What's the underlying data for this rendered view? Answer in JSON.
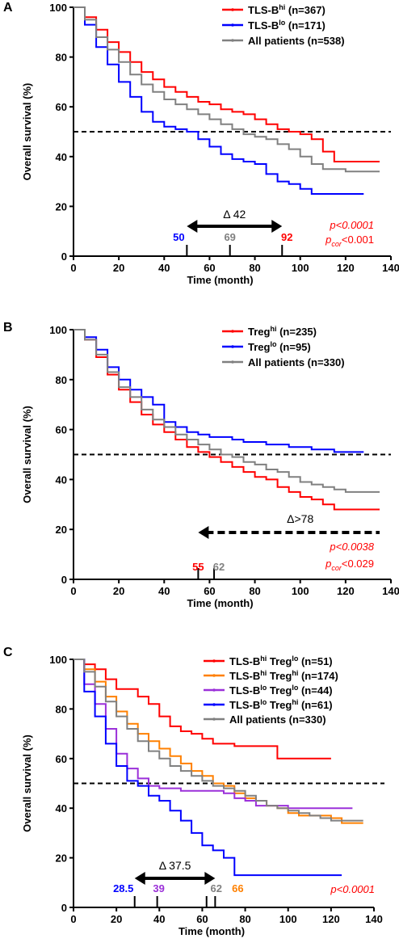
{
  "chart_data": [
    {
      "panel": "A",
      "type": "line",
      "xlabel": "Time (month)",
      "ylabel": "Overall survival (%)",
      "xlim": [
        0,
        140
      ],
      "ylim": [
        0,
        100
      ],
      "xticks": [
        "0",
        "20",
        "40",
        "60",
        "80",
        "100",
        "120",
        "140"
      ],
      "yticks": [
        "0",
        "20",
        "40",
        "60",
        "80",
        "100"
      ],
      "reference_line": 50,
      "legend": [
        "TLS-B^hi (n=367)",
        "TLS-B^lo (n=171)",
        "All patients (n=538)"
      ],
      "series": [
        {
          "name": "TLS-B^hi (n=367)",
          "color": "#ff0000",
          "x": [
            0,
            5,
            10,
            15,
            20,
            25,
            30,
            35,
            40,
            45,
            50,
            55,
            60,
            65,
            70,
            75,
            80,
            85,
            90,
            95,
            100,
            105,
            110,
            115,
            120,
            125,
            135
          ],
          "y": [
            100,
            96,
            91,
            86,
            82,
            78,
            74,
            71,
            68,
            66,
            64,
            62,
            61,
            59,
            58,
            57,
            55,
            53,
            51,
            50,
            49,
            47,
            42,
            38,
            38,
            38,
            38
          ]
        },
        {
          "name": "TLS-B^lo (n=171)",
          "color": "#0000ff",
          "x": [
            0,
            5,
            10,
            15,
            20,
            25,
            30,
            35,
            40,
            45,
            50,
            55,
            60,
            65,
            70,
            75,
            80,
            85,
            90,
            95,
            100,
            105,
            110,
            115,
            120,
            128
          ],
          "y": [
            100,
            93,
            84,
            77,
            70,
            64,
            58,
            54,
            52,
            51,
            50,
            47,
            44,
            41,
            39,
            38,
            37,
            33,
            30,
            29,
            27,
            25,
            25,
            25,
            25,
            25
          ]
        },
        {
          "name": "All patients (n=538)",
          "color": "#808080",
          "x": [
            0,
            5,
            10,
            15,
            20,
            25,
            30,
            35,
            40,
            45,
            50,
            55,
            60,
            65,
            70,
            75,
            80,
            85,
            90,
            95,
            100,
            105,
            110,
            115,
            120,
            125,
            135
          ],
          "y": [
            100,
            95,
            88,
            83,
            78,
            73,
            69,
            66,
            63,
            61,
            59,
            57,
            55,
            53,
            51,
            49,
            48,
            47,
            45,
            43,
            40,
            37,
            35,
            35,
            34,
            34,
            34
          ]
        }
      ],
      "annotations": {
        "delta": "Δ 42",
        "arrow": {
          "from": 50,
          "to": 92
        },
        "medians": [
          {
            "value": "50",
            "color": "#0000ff",
            "x": 50
          },
          {
            "value": "69",
            "color": "#808080",
            "x": 69
          },
          {
            "value": "92",
            "color": "#ff0000",
            "x": 92
          }
        ],
        "p_value": "p<0.0001",
        "p_cor": {
          "p": "p",
          "sub": "cor",
          "rest": "<0.001"
        }
      }
    },
    {
      "panel": "B",
      "type": "line",
      "xlabel": "Time (month)",
      "ylabel": "Overall survival (%)",
      "xlim": [
        0,
        140
      ],
      "ylim": [
        0,
        100
      ],
      "xticks": [
        "0",
        "20",
        "40",
        "60",
        "80",
        "100",
        "120",
        "140"
      ],
      "yticks": [
        "0",
        "20",
        "40",
        "60",
        "80",
        "100"
      ],
      "reference_line": 50,
      "legend": [
        "Treg^hi (n=235)",
        "Treg^lo (n=95)",
        "All patients (n=330)"
      ],
      "series": [
        {
          "name": "Treg^hi (n=235)",
          "color": "#ff0000",
          "x": [
            0,
            5,
            10,
            15,
            20,
            25,
            30,
            35,
            40,
            45,
            50,
            55,
            60,
            65,
            70,
            75,
            80,
            85,
            90,
            95,
            100,
            105,
            110,
            115,
            120,
            125,
            135
          ],
          "y": [
            100,
            96,
            89,
            82,
            76,
            71,
            66,
            62,
            59,
            56,
            53,
            51,
            49,
            47,
            45,
            43,
            41,
            40,
            37,
            35,
            33,
            32,
            30,
            28,
            28,
            28,
            28
          ]
        },
        {
          "name": "Treg^lo (n=95)",
          "color": "#0000ff",
          "x": [
            0,
            5,
            10,
            15,
            20,
            25,
            30,
            35,
            40,
            45,
            50,
            55,
            60,
            65,
            70,
            75,
            80,
            85,
            90,
            95,
            100,
            105,
            110,
            115,
            120,
            128
          ],
          "y": [
            100,
            97,
            92,
            85,
            80,
            76,
            73,
            70,
            63,
            61,
            59,
            58,
            57,
            57,
            56,
            55,
            55,
            54,
            54,
            53,
            53,
            52,
            52,
            51,
            51,
            51
          ]
        },
        {
          "name": "All patients (n=330)",
          "color": "#808080",
          "x": [
            0,
            5,
            10,
            15,
            20,
            25,
            30,
            35,
            40,
            45,
            50,
            55,
            60,
            65,
            70,
            75,
            80,
            85,
            90,
            95,
            100,
            105,
            110,
            115,
            120,
            125,
            135
          ],
          "y": [
            100,
            96,
            90,
            83,
            77,
            73,
            68,
            64,
            61,
            58,
            56,
            54,
            52,
            50,
            49,
            47,
            46,
            44,
            43,
            41,
            39,
            38,
            37,
            36,
            35,
            35,
            35
          ]
        }
      ],
      "annotations": {
        "delta": "Δ>78",
        "arrow": {
          "from": 135,
          "to": 55
        },
        "medians": [
          {
            "value": "55",
            "color": "#ff0000",
            "x": 55
          },
          {
            "value": "62",
            "color": "#808080",
            "x": 62
          }
        ],
        "p_value": "p<0.0038",
        "p_cor": {
          "p": "p",
          "sub": "cor",
          "rest": "<0.029"
        }
      }
    },
    {
      "panel": "C",
      "type": "line",
      "xlabel": "Time (month)",
      "ylabel": "Overall survival (%)",
      "xlim": [
        0,
        140
      ],
      "ylim": [
        0,
        100
      ],
      "xticks": [
        "0",
        "20",
        "40",
        "60",
        "80",
        "100",
        "120",
        "140"
      ],
      "yticks": [
        "0",
        "20",
        "40",
        "60",
        "80",
        "100"
      ],
      "reference_line": 50,
      "legend": [
        "TLS-B^hi Treg^lo (n=51)",
        "TLS-B^hi Treg^hi (n=174)",
        "TLS-B^lo Treg^lo (n=44)",
        "TLS-B^lo Treg^hi (n=61)",
        "All patients (n=330)"
      ],
      "series": [
        {
          "name": "TLS-B^hi Treg^lo (n=51)",
          "color": "#ff0000",
          "x": [
            0,
            5,
            10,
            15,
            20,
            25,
            30,
            35,
            40,
            45,
            50,
            55,
            60,
            65,
            70,
            75,
            80,
            85,
            90,
            95,
            100,
            110,
            120
          ],
          "y": [
            100,
            98,
            96,
            92,
            88,
            88,
            85,
            82,
            77,
            73,
            71,
            70,
            68,
            66,
            66,
            65,
            65,
            65,
            65,
            60,
            60,
            60,
            60
          ]
        },
        {
          "name": "TLS-B^hi Treg^hi (n=174)",
          "color": "#ff8000",
          "x": [
            0,
            5,
            10,
            15,
            20,
            25,
            30,
            35,
            40,
            45,
            50,
            55,
            60,
            65,
            70,
            75,
            80,
            85,
            90,
            95,
            100,
            105,
            110,
            115,
            120,
            125,
            135
          ],
          "y": [
            100,
            96,
            91,
            85,
            79,
            74,
            70,
            67,
            64,
            61,
            58,
            55,
            53,
            50,
            49,
            46,
            44,
            43,
            41,
            40,
            38,
            37,
            37,
            37,
            36,
            34,
            34
          ]
        },
        {
          "name": "TLS-B^lo Treg^lo (n=44)",
          "color": "#9b30d9",
          "x": [
            0,
            5,
            10,
            15,
            20,
            25,
            30,
            35,
            40,
            45,
            50,
            55,
            60,
            65,
            70,
            75,
            80,
            85,
            90,
            95,
            100,
            110,
            120,
            130
          ],
          "y": [
            100,
            90,
            82,
            72,
            62,
            56,
            52,
            49,
            48,
            48,
            47,
            47,
            47,
            47,
            46,
            44,
            43,
            41,
            41,
            41,
            40,
            40,
            40,
            40
          ]
        },
        {
          "name": "TLS-B^lo Treg^hi (n=61)",
          "color": "#0000ff",
          "x": [
            0,
            5,
            10,
            15,
            20,
            25,
            30,
            35,
            40,
            45,
            50,
            55,
            60,
            65,
            70,
            75,
            80,
            85,
            90,
            100,
            110,
            125
          ],
          "y": [
            100,
            87,
            77,
            66,
            57,
            51,
            49,
            45,
            43,
            39,
            35,
            30,
            25,
            23,
            20,
            13,
            13,
            13,
            13,
            13,
            13,
            13
          ]
        },
        {
          "name": "All patients (n=330)",
          "color": "#808080",
          "x": [
            0,
            5,
            10,
            15,
            20,
            25,
            30,
            35,
            40,
            45,
            50,
            55,
            60,
            65,
            70,
            75,
            80,
            85,
            90,
            95,
            100,
            105,
            110,
            115,
            120,
            125,
            135
          ],
          "y": [
            100,
            95,
            89,
            83,
            77,
            72,
            67,
            63,
            60,
            57,
            55,
            53,
            51,
            49,
            48,
            47,
            45,
            43,
            41,
            40,
            39,
            38,
            37,
            36,
            35,
            35,
            35
          ]
        }
      ],
      "annotations": {
        "delta": "Δ 37.5",
        "arrow": {
          "from": 28.5,
          "to": 66
        },
        "medians": [
          {
            "value": "28.5",
            "color": "#0000ff",
            "x": 28.5
          },
          {
            "value": "39",
            "color": "#9b30d9",
            "x": 39
          },
          {
            "value": "62",
            "color": "#808080",
            "x": 62
          },
          {
            "value": "66",
            "color": "#ff8000",
            "x": 66
          }
        ],
        "p_value": "p<0.0001"
      }
    }
  ],
  "panel_labels": [
    "A",
    "B",
    "C"
  ],
  "legend_text": {
    "A": [
      {
        "pre": "TLS-B",
        "sup": "hi",
        "post": " (n=367)"
      },
      {
        "pre": "TLS-B",
        "sup": "lo",
        "post": " (n=171)"
      },
      {
        "pre": "All patients (n=538)",
        "sup": "",
        "post": ""
      }
    ],
    "B": [
      {
        "pre": "Treg",
        "sup": "hi",
        "post": " (n=235)"
      },
      {
        "pre": "Treg",
        "sup": "lo",
        "post": " (n=95)"
      },
      {
        "pre": "All patients (n=330)",
        "sup": "",
        "post": ""
      }
    ],
    "C": [
      {
        "pre": "TLS-B",
        "sup": "hi",
        "mid": " Treg",
        "sup2": "lo",
        "post": " (n=51)"
      },
      {
        "pre": "TLS-B",
        "sup": "hi",
        "mid": " Treg",
        "sup2": "hi",
        "post": " (n=174)"
      },
      {
        "pre": "TLS-B",
        "sup": "lo",
        "mid": " Treg",
        "sup2": "lo",
        "post": " (n=44)"
      },
      {
        "pre": "TLS-B",
        "sup": "lo",
        "mid": " Treg",
        "sup2": "hi",
        "post": " (n=61)"
      },
      {
        "pre": "All patients (n=330)",
        "sup": "",
        "mid": "",
        "sup2": "",
        "post": ""
      }
    ]
  }
}
